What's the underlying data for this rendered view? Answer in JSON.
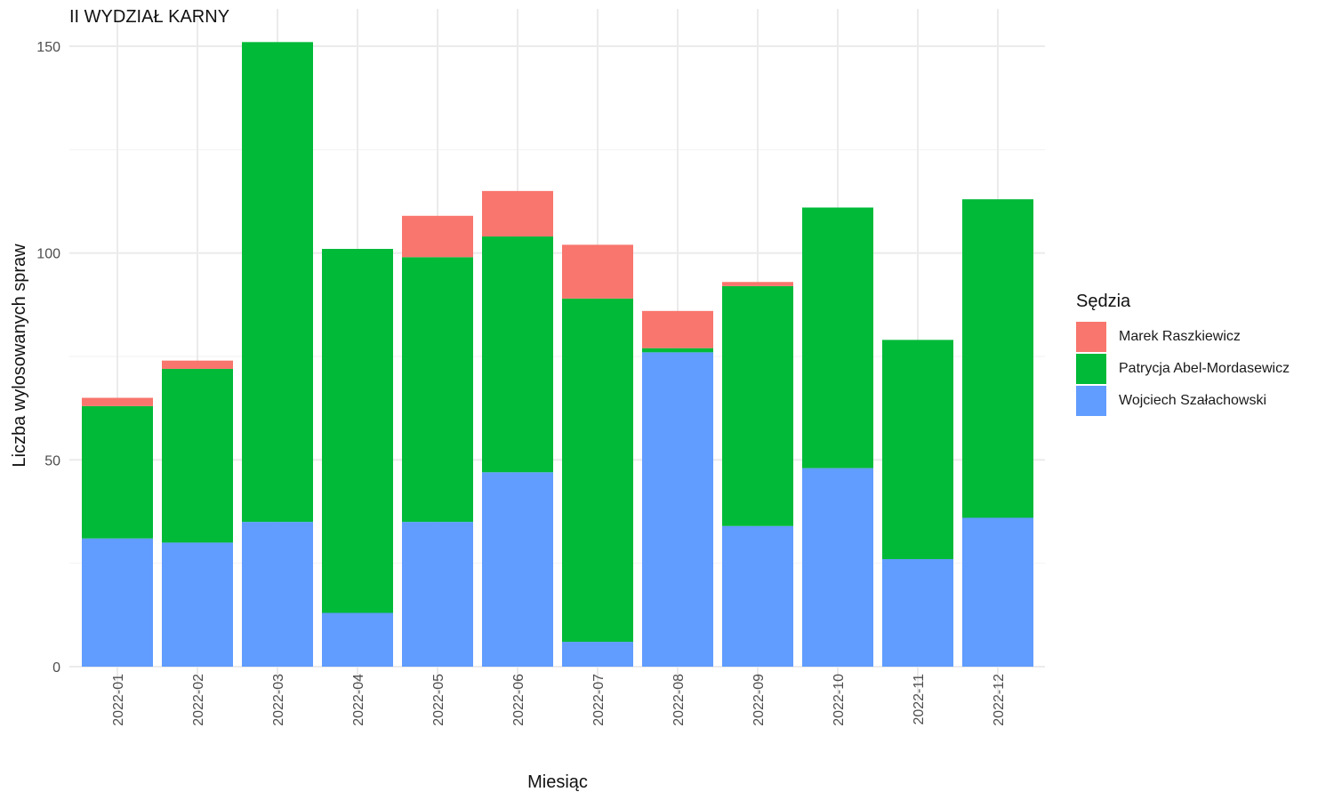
{
  "chart_data": {
    "type": "bar",
    "stacked": true,
    "title": "II WYDZIAŁ KARNY",
    "xlabel": "Miesiąc",
    "ylabel": "Liczba wylosowanych spraw",
    "ylim": [
      0,
      150
    ],
    "yticks": [
      0,
      50,
      100,
      150
    ],
    "grid": true,
    "legend_title": "Sędzia",
    "legend_position": "right",
    "categories": [
      "2022-01",
      "2022-02",
      "2022-03",
      "2022-04",
      "2022-05",
      "2022-06",
      "2022-07",
      "2022-08",
      "2022-09",
      "2022-10",
      "2022-11",
      "2022-12"
    ],
    "series": [
      {
        "name": "Wojciech Szałachowski",
        "color": "#619CFF",
        "values": [
          31,
          30,
          35,
          13,
          35,
          47,
          6,
          76,
          34,
          48,
          26,
          36
        ]
      },
      {
        "name": "Patrycja Abel-Mordasewicz",
        "color": "#00BA38",
        "values": [
          32,
          42,
          116,
          88,
          64,
          57,
          83,
          1,
          58,
          63,
          53,
          77
        ]
      },
      {
        "name": "Marek Raszkiewicz",
        "color": "#F8766D",
        "values": [
          2,
          2,
          0,
          0,
          10,
          11,
          13,
          9,
          1,
          0,
          0,
          0
        ]
      }
    ],
    "legend_order": [
      "Marek Raszkiewicz",
      "Patrycja Abel-Mordasewicz",
      "Wojciech Szałachowski"
    ]
  }
}
